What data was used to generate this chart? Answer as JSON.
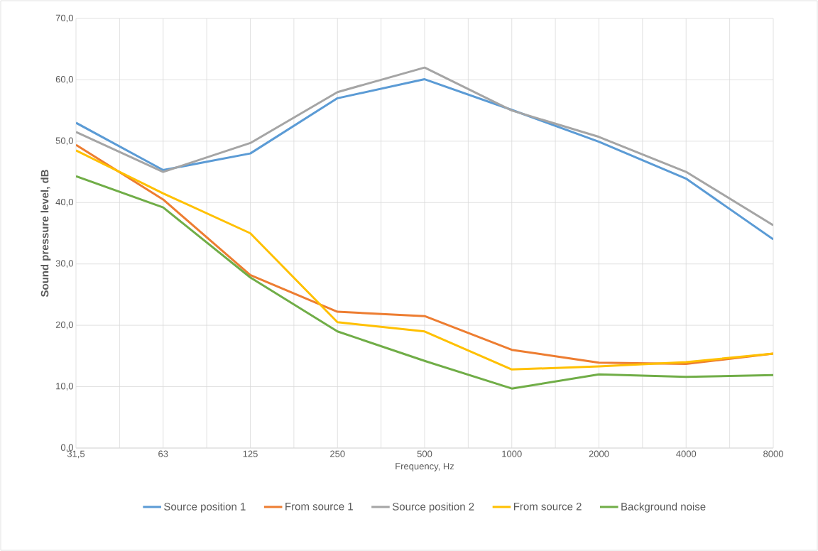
{
  "chart_data": {
    "type": "line",
    "xlabel": "Frequency, Hz",
    "ylabel": "Sound pressure level, dB",
    "categories": [
      "31,5",
      "63",
      "125",
      "250",
      "500",
      "1000",
      "2000",
      "4000",
      "8000"
    ],
    "series": [
      {
        "name": "Source position 1",
        "color": "#5b9bd5",
        "values": [
          53.0,
          45.3,
          48.0,
          57.0,
          60.1,
          55.1,
          49.9,
          43.9,
          34.0
        ]
      },
      {
        "name": "From source 1",
        "color": "#ed7d31",
        "values": [
          49.4,
          40.5,
          28.2,
          22.2,
          21.5,
          16.0,
          13.9,
          13.7,
          15.4
        ]
      },
      {
        "name": "Source position 2",
        "color": "#a5a5a5",
        "values": [
          51.5,
          45.0,
          49.7,
          58.0,
          62.0,
          55.0,
          50.7,
          45.0,
          36.3
        ]
      },
      {
        "name": "From source 2",
        "color": "#ffc000",
        "values": [
          48.5,
          41.5,
          35.0,
          20.5,
          19.0,
          12.8,
          13.3,
          14.0,
          15.4
        ]
      },
      {
        "name": "Background noise",
        "color": "#70ad47",
        "values": [
          44.3,
          39.2,
          27.8,
          19.0,
          14.2,
          9.7,
          12.0,
          11.6,
          11.9
        ]
      }
    ],
    "ylim": [
      0,
      70
    ],
    "yticks": [
      {
        "value": 0,
        "label": "0,0"
      },
      {
        "value": 10,
        "label": "10,0"
      },
      {
        "value": 20,
        "label": "20,0"
      },
      {
        "value": 30,
        "label": "30,0"
      },
      {
        "value": 40,
        "label": "40,0"
      },
      {
        "value": 50,
        "label": "50,0"
      },
      {
        "value": 60,
        "label": "60,0"
      },
      {
        "value": 70,
        "label": "70,0"
      }
    ],
    "grid": true,
    "legend": "bottom",
    "marker": "none",
    "line_style": "solid"
  }
}
